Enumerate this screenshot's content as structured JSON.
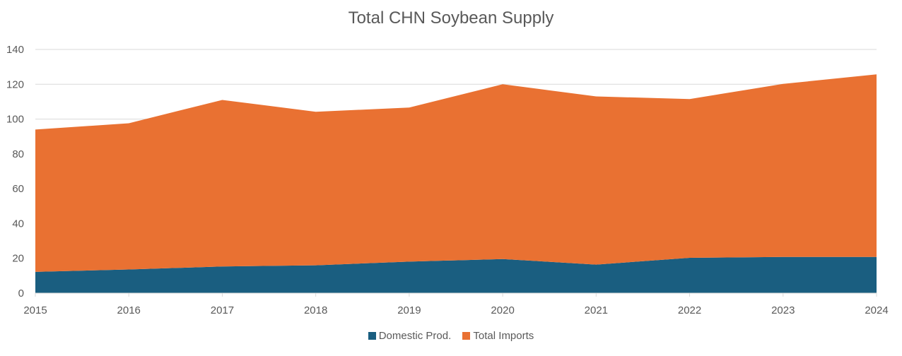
{
  "chart_data": {
    "type": "area",
    "stacked": true,
    "title": "Total CHN Soybean Supply",
    "xlabel": "",
    "ylabel": "",
    "x": [
      "2015",
      "2016",
      "2017",
      "2018",
      "2019",
      "2020",
      "2021",
      "2022",
      "2023",
      "2024"
    ],
    "ylim": [
      0,
      140
    ],
    "yticks": [
      0,
      20,
      40,
      60,
      80,
      100,
      120,
      140
    ],
    "grid": true,
    "legend_position": "bottom",
    "series": [
      {
        "name": "Domestic Prod.",
        "color": "#1a5e80",
        "values": [
          12.2,
          13.6,
          15.3,
          16.0,
          18.1,
          19.6,
          16.4,
          20.3,
          20.8,
          20.8
        ]
      },
      {
        "name": "Total Imports",
        "color": "#e97132",
        "values": [
          81.8,
          84.0,
          95.7,
          88.2,
          88.5,
          100.4,
          96.6,
          91.2,
          99.4,
          104.9
        ]
      }
    ]
  }
}
